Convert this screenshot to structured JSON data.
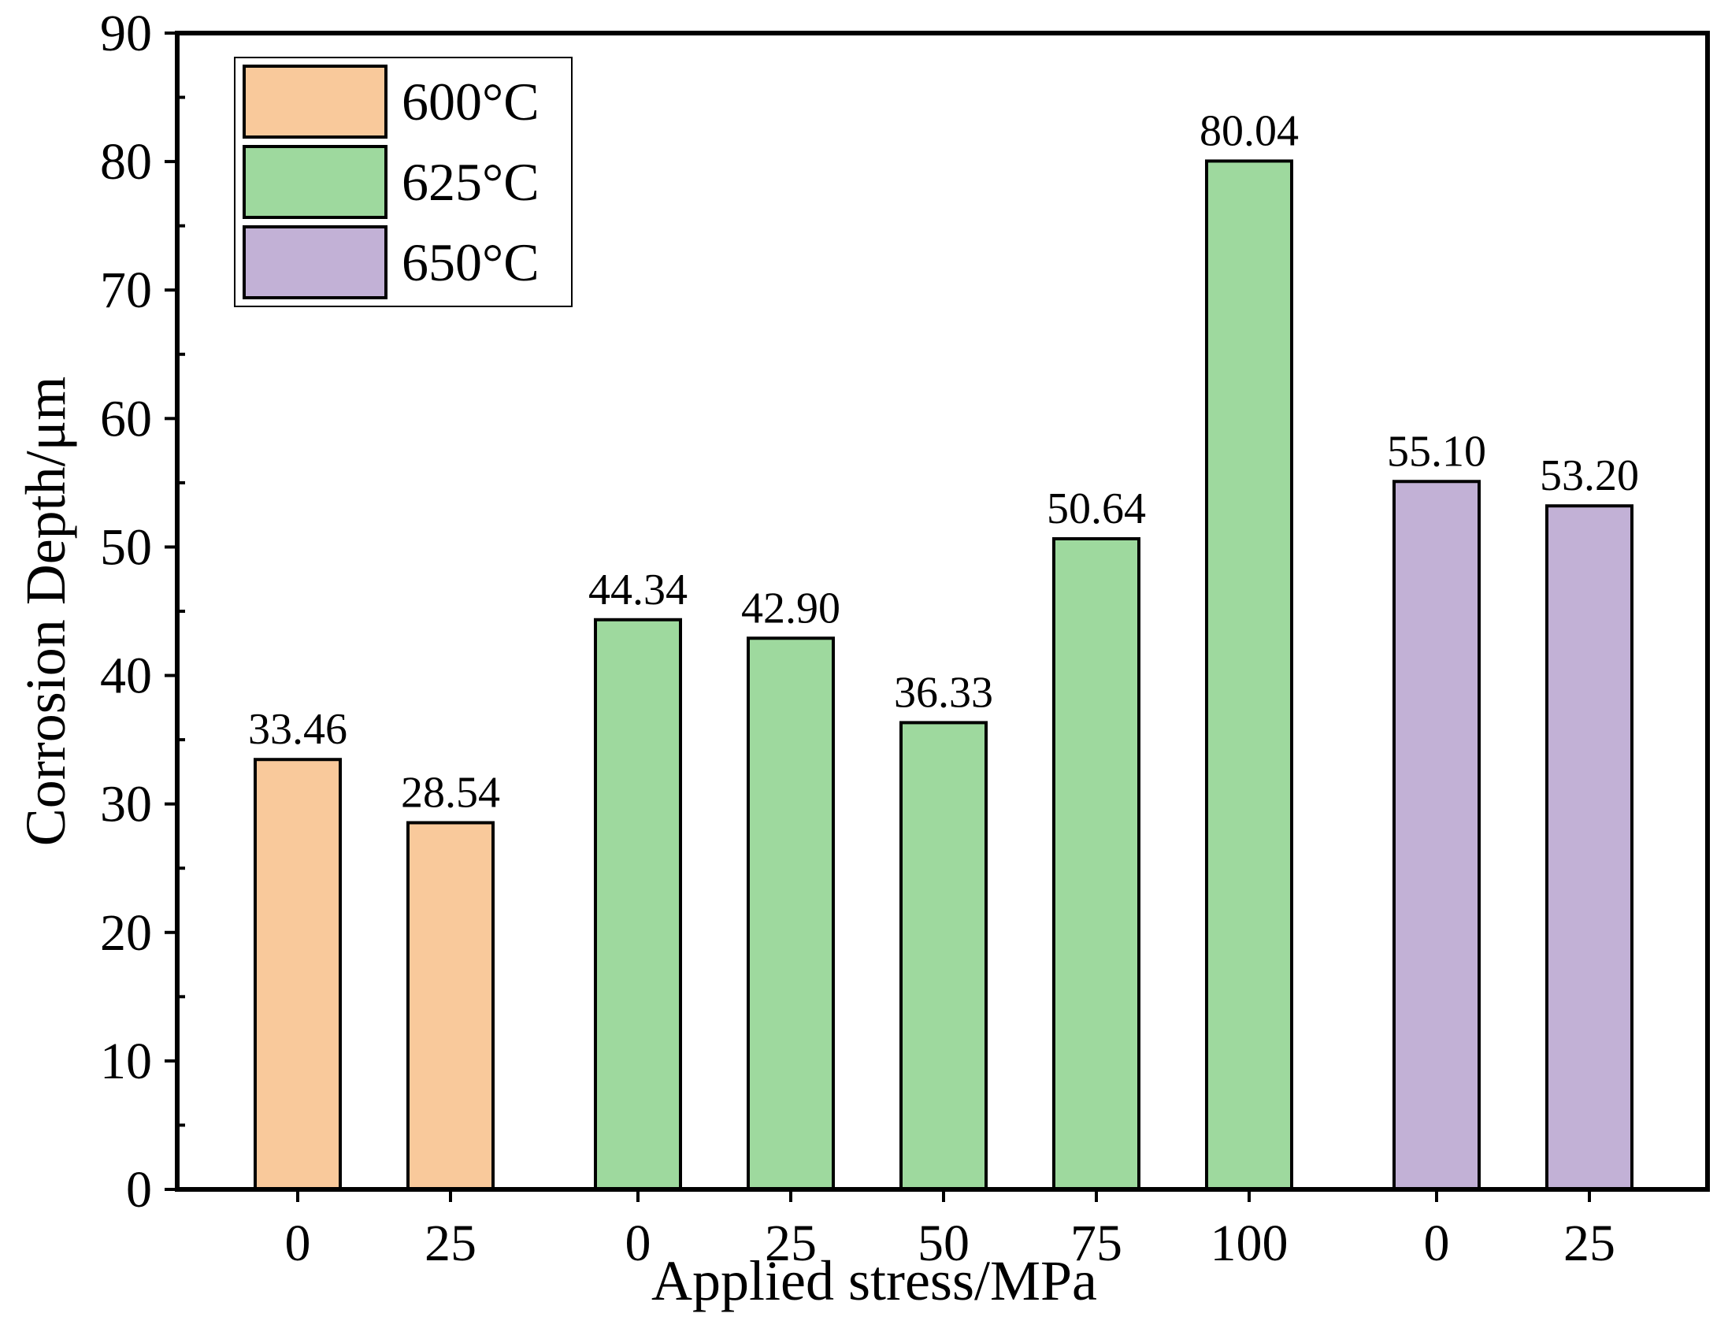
{
  "chart_data": {
    "type": "bar",
    "title": "",
    "xlabel": "Applied stress/MPa",
    "ylabel": "Corrosion Depth/μm",
    "ylim": [
      0,
      90
    ],
    "yticks": [
      0,
      10,
      20,
      30,
      40,
      50,
      60,
      70,
      80,
      90
    ],
    "legend_position": "top-left",
    "grid": false,
    "series": [
      {
        "name": "600°C",
        "color": "#f9c99b",
        "categories": [
          "0",
          "25"
        ],
        "values": [
          33.46,
          28.54
        ]
      },
      {
        "name": "625°C",
        "color": "#9ed99e",
        "categories": [
          "0",
          "25",
          "50",
          "75",
          "100"
        ],
        "values": [
          44.34,
          42.9,
          36.33,
          50.64,
          80.04
        ]
      },
      {
        "name": "650°C",
        "color": "#c2b1d6",
        "categories": [
          "0",
          "25"
        ],
        "values": [
          55.1,
          53.2
        ]
      }
    ],
    "value_labels": [
      "33.46",
      "28.54",
      "44.34",
      "42.90",
      "36.33",
      "50.64",
      "80.04",
      "55.10",
      "53.20"
    ]
  }
}
